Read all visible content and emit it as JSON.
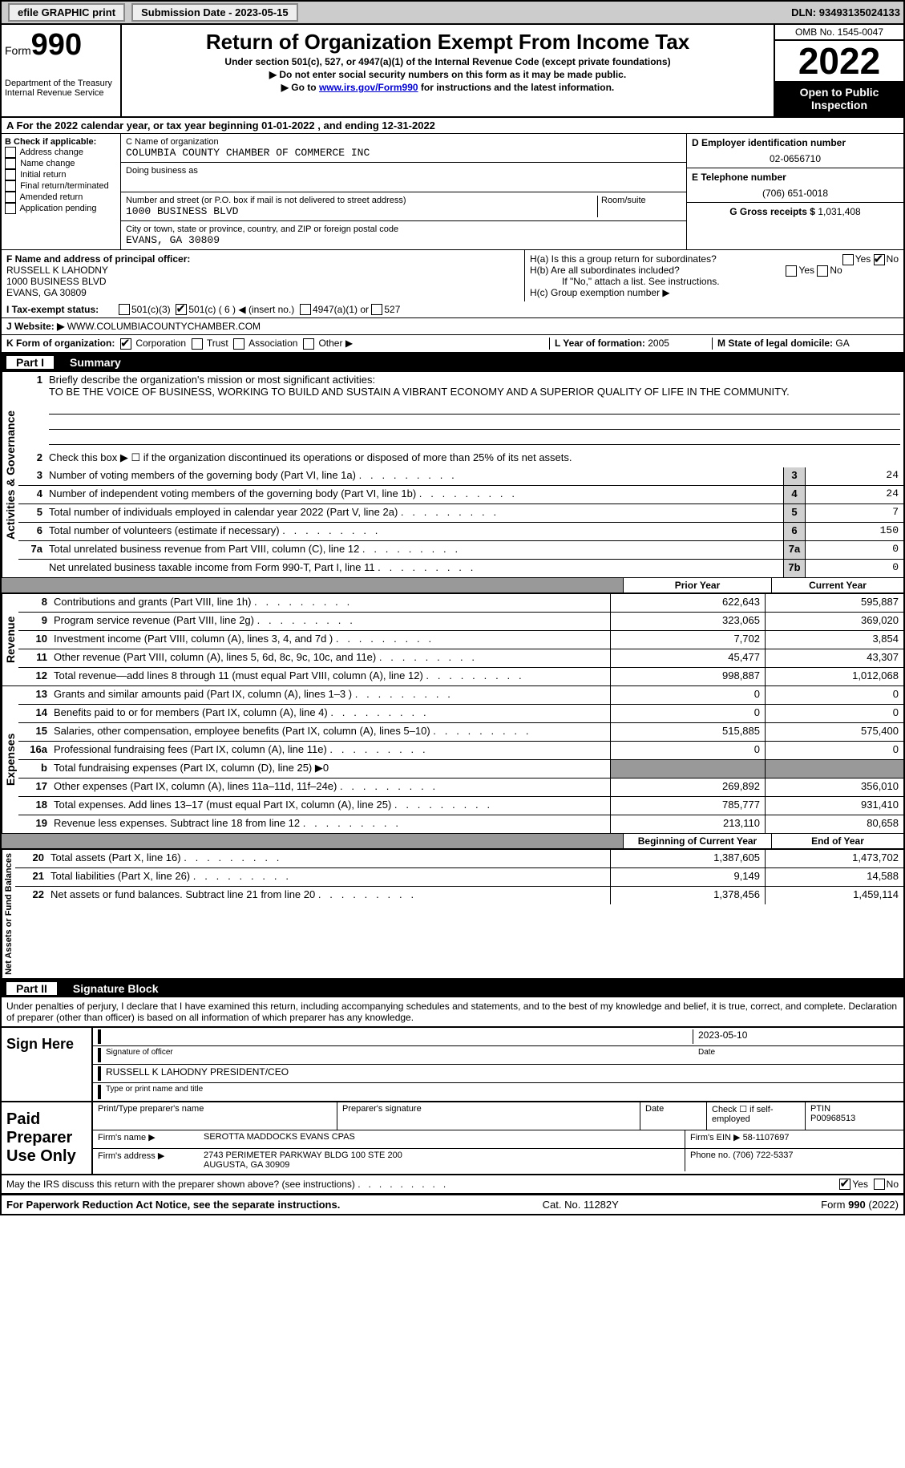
{
  "topbar": {
    "efile": "efile GRAPHIC print",
    "subdate_label": "Submission Date - ",
    "subdate": "2023-05-15",
    "dln_label": "DLN: ",
    "dln": "93493135024133"
  },
  "header": {
    "form_label": "Form",
    "form_num": "990",
    "dept": "Department of the Treasury\nInternal Revenue Service",
    "title": "Return of Organization Exempt From Income Tax",
    "sub1": "Under section 501(c), 527, or 4947(a)(1) of the Internal Revenue Code (except private foundations)",
    "sub2": "▶ Do not enter social security numbers on this form as it may be made public.",
    "sub3_pre": "▶ Go to ",
    "sub3_link": "www.irs.gov/Form990",
    "sub3_post": " for instructions and the latest information.",
    "omb": "OMB No. 1545-0047",
    "year": "2022",
    "open": "Open to Public Inspection"
  },
  "line_a": "A  For the 2022 calendar year, or tax year beginning 01-01-2022   , and ending 12-31-2022",
  "block_b": {
    "title": "B Check if applicable:",
    "items": [
      "Address change",
      "Name change",
      "Initial return",
      "Final return/terminated",
      "Amended return",
      "Application pending"
    ]
  },
  "block_c": {
    "c_label": "C Name of organization",
    "org": "COLUMBIA COUNTY CHAMBER OF COMMERCE INC",
    "dba": "Doing business as",
    "street_label": "Number and street (or P.O. box if mail is not delivered to street address)",
    "street": "1000 BUSINESS BLVD",
    "room_label": "Room/suite",
    "city_label": "City or town, state or province, country, and ZIP or foreign postal code",
    "city": "EVANS, GA  30809"
  },
  "block_d": {
    "d_label": "D Employer identification number",
    "ein": "02-0656710",
    "e_label": "E Telephone number",
    "phone": "(706) 651-0018",
    "g_label": "G Gross receipts $ ",
    "gross": "1,031,408"
  },
  "block_f": {
    "f_label": "F Name and address of principal officer:",
    "f_val": "RUSSELL K LAHODNY\n1000 BUSINESS BLVD\nEVANS, GA  30809"
  },
  "block_h": {
    "ha": "H(a)  Is this a group return for subordinates?",
    "hb": "H(b)  Are all subordinates included?",
    "hb_note": "If \"No,\" attach a list. See instructions.",
    "hc": "H(c)  Group exemption number ▶"
  },
  "block_i": {
    "label": "I   Tax-exempt status:",
    "opts": [
      "501(c)(3)",
      "501(c) ( 6 ) ◀ (insert no.)",
      "4947(a)(1) or",
      "527"
    ]
  },
  "block_j": {
    "label": "J   Website: ▶",
    "val": "  WWW.COLUMBIACOUNTYCHAMBER.COM"
  },
  "block_k": {
    "label": "K Form of organization:",
    "opts": [
      "Corporation",
      "Trust",
      "Association",
      "Other ▶"
    ]
  },
  "block_l": {
    "label": "L Year of formation: ",
    "val": "2005"
  },
  "block_m": {
    "label": "M State of legal domicile: ",
    "val": "GA"
  },
  "part1": {
    "num": "Part I",
    "title": "Summary"
  },
  "summary": {
    "l1": "Briefly describe the organization's mission or most significant activities:",
    "mission": "TO BE THE VOICE OF BUSINESS, WORKING TO BUILD AND SUSTAIN A VIBRANT ECONOMY AND A SUPERIOR QUALITY OF LIFE IN THE COMMUNITY.",
    "l2": "Check this box ▶ ☐  if the organization discontinued its operations or disposed of more than 25% of its net assets.",
    "l3": "Number of voting members of the governing body (Part VI, line 1a)",
    "v3": "24",
    "l4": "Number of independent voting members of the governing body (Part VI, line 1b)",
    "v4": "24",
    "l5": "Total number of individuals employed in calendar year 2022 (Part V, line 2a)",
    "v5": "7",
    "l6": "Total number of volunteers (estimate if necessary)",
    "v6": "150",
    "l7a": "Total unrelated business revenue from Part VIII, column (C), line 12",
    "v7a": "0",
    "l7b": "Net unrelated business taxable income from Form 990-T, Part I, line 11",
    "v7b": "0"
  },
  "cols": {
    "prior": "Prior Year",
    "current": "Current Year",
    "begin": "Beginning of Current Year",
    "end": "End of Year"
  },
  "revenue": [
    {
      "n": "8",
      "d": "Contributions and grants (Part VIII, line 1h)",
      "p": "622,643",
      "c": "595,887"
    },
    {
      "n": "9",
      "d": "Program service revenue (Part VIII, line 2g)",
      "p": "323,065",
      "c": "369,020"
    },
    {
      "n": "10",
      "d": "Investment income (Part VIII, column (A), lines 3, 4, and 7d )",
      "p": "7,702",
      "c": "3,854"
    },
    {
      "n": "11",
      "d": "Other revenue (Part VIII, column (A), lines 5, 6d, 8c, 9c, 10c, and 11e)",
      "p": "45,477",
      "c": "43,307"
    },
    {
      "n": "12",
      "d": "Total revenue—add lines 8 through 11 (must equal Part VIII, column (A), line 12)",
      "p": "998,887",
      "c": "1,012,068"
    }
  ],
  "expenses": [
    {
      "n": "13",
      "d": "Grants and similar amounts paid (Part IX, column (A), lines 1–3 )",
      "p": "0",
      "c": "0"
    },
    {
      "n": "14",
      "d": "Benefits paid to or for members (Part IX, column (A), line 4)",
      "p": "0",
      "c": "0"
    },
    {
      "n": "15",
      "d": "Salaries, other compensation, employee benefits (Part IX, column (A), lines 5–10)",
      "p": "515,885",
      "c": "575,400"
    },
    {
      "n": "16a",
      "d": "Professional fundraising fees (Part IX, column (A), line 11e)",
      "p": "0",
      "c": "0"
    },
    {
      "n": "b",
      "d": "Total fundraising expenses (Part IX, column (D), line 25) ▶0",
      "grey": true
    },
    {
      "n": "17",
      "d": "Other expenses (Part IX, column (A), lines 11a–11d, 11f–24e)",
      "p": "269,892",
      "c": "356,010"
    },
    {
      "n": "18",
      "d": "Total expenses. Add lines 13–17 (must equal Part IX, column (A), line 25)",
      "p": "785,777",
      "c": "931,410"
    },
    {
      "n": "19",
      "d": "Revenue less expenses. Subtract line 18 from line 12",
      "p": "213,110",
      "c": "80,658"
    }
  ],
  "netassets": [
    {
      "n": "20",
      "d": "Total assets (Part X, line 16)",
      "p": "1,387,605",
      "c": "1,473,702"
    },
    {
      "n": "21",
      "d": "Total liabilities (Part X, line 26)",
      "p": "9,149",
      "c": "14,588"
    },
    {
      "n": "22",
      "d": "Net assets or fund balances. Subtract line 21 from line 20",
      "p": "1,378,456",
      "c": "1,459,114"
    }
  ],
  "section_labels": {
    "ag": "Activities & Governance",
    "rev": "Revenue",
    "exp": "Expenses",
    "na": "Net Assets or Fund Balances"
  },
  "part2": {
    "num": "Part II",
    "title": "Signature Block"
  },
  "sig": {
    "decl": "Under penalties of perjury, I declare that I have examined this return, including accompanying schedules and statements, and to the best of my knowledge and belief, it is true, correct, and complete. Declaration of preparer (other than officer) is based on all information of which preparer has any knowledge.",
    "sign_here": "Sign Here",
    "date": "2023-05-10",
    "sig_label": "Signature of officer",
    "date_label": "Date",
    "name": "RUSSELL K LAHODNY PRESIDENT/CEO",
    "name_label": "Type or print name and title",
    "paid": "Paid Preparer Use Only",
    "pp_name_l": "Print/Type preparer's name",
    "pp_sig_l": "Preparer's signature",
    "pp_date_l": "Date",
    "pp_check_l": "Check ☐ if self-employed",
    "ptin_l": "PTIN",
    "ptin": "P00968513",
    "firm_name_l": "Firm's name    ▶",
    "firm_name": "SEROTTA MADDOCKS EVANS CPAS",
    "firm_ein_l": "Firm's EIN ▶",
    "firm_ein": "58-1107697",
    "firm_addr_l": "Firm's address ▶",
    "firm_addr": "2743 PERIMETER PARKWAY BLDG 100 STE 200\nAUGUSTA, GA  30909",
    "phone_l": "Phone no. ",
    "phone": "(706) 722-5337",
    "discuss": "May the IRS discuss this return with the preparer shown above? (see instructions)"
  },
  "footer": {
    "left": "For Paperwork Reduction Act Notice, see the separate instructions.",
    "mid": "Cat. No. 11282Y",
    "right": "Form 990 (2022)"
  }
}
